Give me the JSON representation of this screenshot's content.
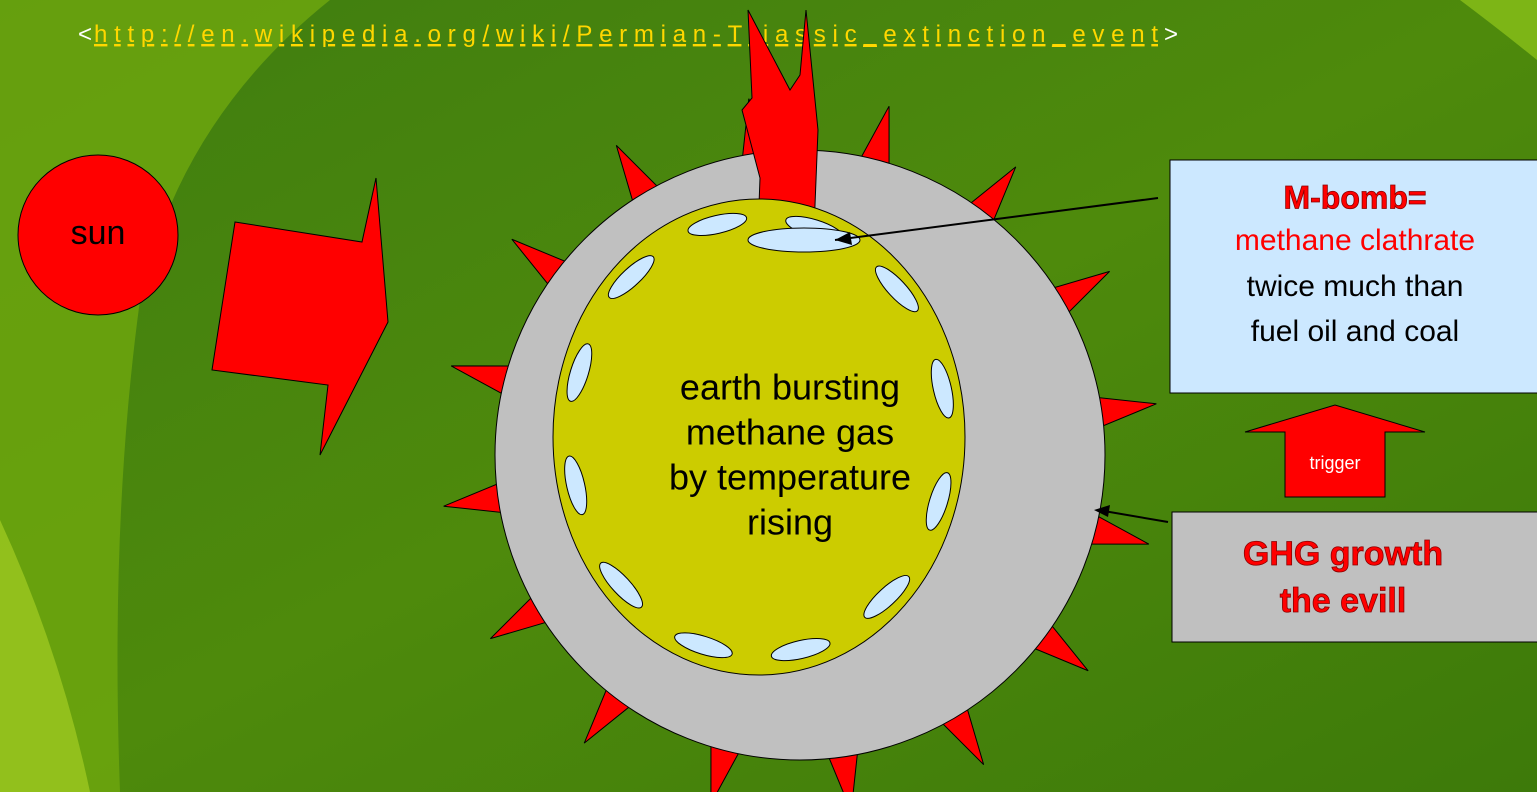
{
  "link": {
    "open": "<",
    "url": "http://en.wikipedia.org/wiki/Permian-Triassic_extinction_event",
    "close": ">"
  },
  "sun": "sun",
  "earth": [
    "earth bursting",
    "methane gas",
    "by temperature",
    "rising"
  ],
  "mbomb": {
    "title": "M-bomb=",
    "subtitle": "methane clathrate",
    "lines": [
      "twice much than",
      "fuel oil and coal"
    ]
  },
  "trigger": "trigger",
  "ghg": [
    "GHG growth",
    "the evill"
  ]
}
